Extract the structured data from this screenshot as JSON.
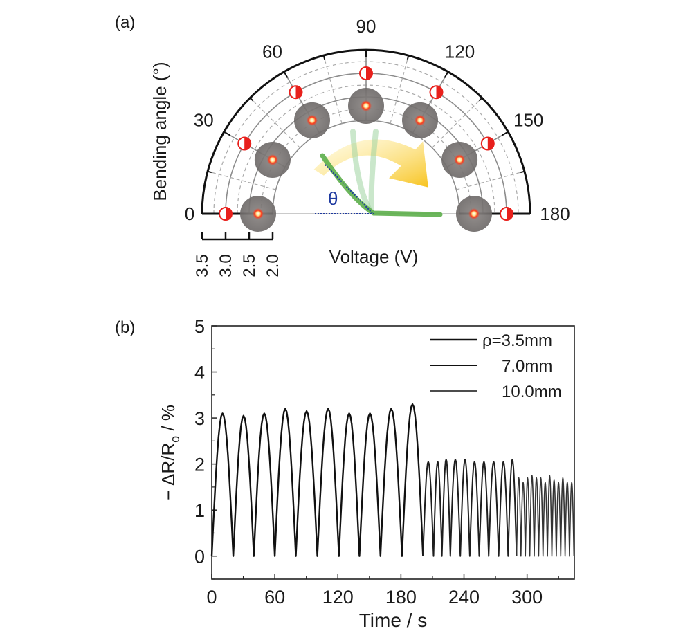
{
  "panel_labels": {
    "a": "(a)",
    "b": "(b)"
  },
  "chart_data": [
    {
      "type": "polar",
      "panel": "(a)",
      "angle_axis": {
        "label": "Bending angle (°)",
        "range": [
          0,
          180
        ],
        "tick_labels": [
          "0",
          "30",
          "60",
          "90",
          "120",
          "150",
          "180"
        ]
      },
      "radial_axis": {
        "label": "Voltage (V)",
        "range": [
          3.5,
          2.0
        ],
        "tick_labels": [
          "3.5",
          "3.0",
          "2.5",
          "2.0"
        ],
        "ticks": [
          3.5,
          3.0,
          2.5,
          2.0
        ]
      },
      "points": [
        {
          "angle": 0,
          "voltage": 3.0
        },
        {
          "angle": 30,
          "voltage": 3.0
        },
        {
          "angle": 60,
          "voltage": 3.0
        },
        {
          "angle": 90,
          "voltage": 3.0
        },
        {
          "angle": 120,
          "voltage": 3.0
        },
        {
          "angle": 150,
          "voltage": 3.0
        },
        {
          "angle": 180,
          "voltage": 3.0
        }
      ],
      "photo_angles": [
        0,
        30,
        60,
        90,
        120,
        150,
        180
      ],
      "annotation": "θ",
      "colors": {
        "marker": "#e8201c",
        "arrow": "#f7c21b",
        "theta": "#1f3aa0",
        "strip": "#5cae4a"
      }
    },
    {
      "type": "line",
      "panel": "(b)",
      "xlabel": "Time / s",
      "ylabel": {
        "main": "− ΔR/R",
        "sub": "o",
        "tail": " / %"
      },
      "xlim": [
        0,
        345
      ],
      "ylim": [
        -0.5,
        5
      ],
      "xticks": [
        0,
        60,
        120,
        180,
        240,
        300
      ],
      "yticks": [
        0,
        1,
        2,
        3,
        4,
        5
      ],
      "legend_position": "top-right",
      "series": [
        {
          "name": "ρ=3.5mm",
          "width": 2.4,
          "troughs": [
            0,
            20.5,
            40,
            60,
            80,
            100.5,
            121,
            140.5,
            160.5,
            181,
            201
          ],
          "peaks": [
            3.1,
            3.05,
            3.1,
            3.2,
            3.15,
            3.2,
            3.1,
            3.1,
            3.2,
            3.3
          ]
        },
        {
          "name": "7.0mm",
          "width": 2.0,
          "troughs": [
            201,
            211,
            219,
            227,
            236.5,
            245.5,
            254.5,
            263.5,
            273,
            282,
            290
          ],
          "peaks": [
            2.05,
            2.05,
            2.1,
            2.1,
            2.1,
            2.05,
            2.05,
            2.05,
            2.05,
            2.1
          ]
        },
        {
          "name": "10.0mm",
          "width": 1.6,
          "troughs": [
            290,
            294.2,
            298.4,
            302.6,
            306.8,
            311,
            315.2,
            319.4,
            323.6,
            327.8,
            332,
            336.2,
            340.4,
            344.6
          ],
          "peaks": [
            1.7,
            1.6,
            1.7,
            1.75,
            1.7,
            1.7,
            1.6,
            1.75,
            1.65,
            1.6,
            1.7,
            1.6,
            1.6
          ]
        }
      ]
    }
  ]
}
